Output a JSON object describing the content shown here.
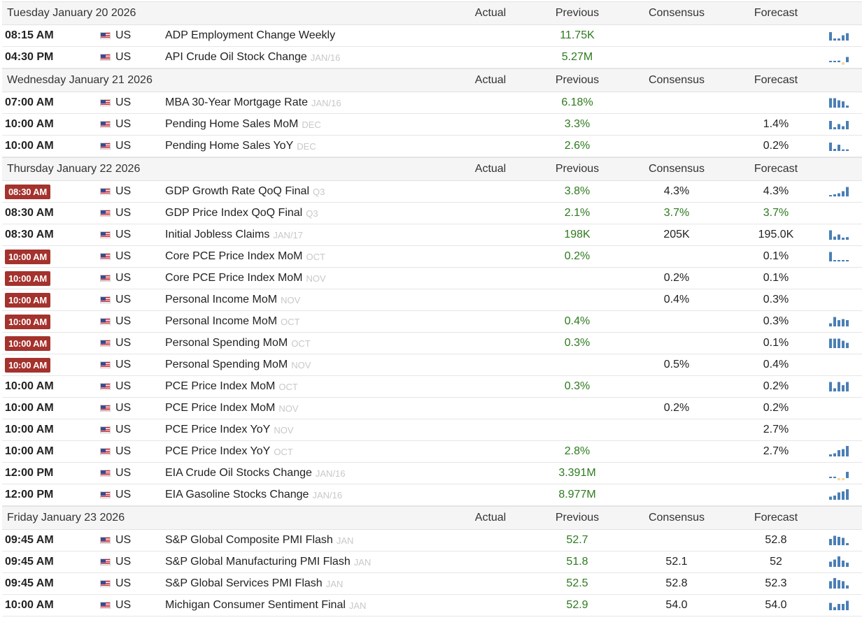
{
  "colors": {
    "green": "#2d7a1e",
    "badge": "#a4322d",
    "bar": "#4a7fb5",
    "bar_pale": "#f3d9a0"
  },
  "columns": {
    "actual": "Actual",
    "previous": "Previous",
    "consensus": "Consensus",
    "forecast": "Forecast"
  },
  "days": [
    {
      "date": "Tuesday January 20 2026",
      "events": [
        {
          "time": "08:15 AM",
          "highlight": false,
          "flag": "us-flag-icon",
          "country": "US",
          "name": "ADP Employment Change Weekly",
          "ref": "",
          "previous": "11.75K",
          "prev_color": "green",
          "consensus": "",
          "cons_color": "black",
          "forecast": "",
          "fc_color": "black",
          "spark": "bars",
          "bars": [
            0.8,
            0.2,
            0.2,
            0.5,
            0.7
          ]
        },
        {
          "time": "04:30 PM",
          "highlight": false,
          "flag": "us-flag-icon",
          "country": "US",
          "name": "API Crude Oil Stock Change",
          "ref": "JAN/16",
          "previous": "5.27M",
          "prev_color": "green",
          "consensus": "",
          "cons_color": "black",
          "forecast": "",
          "fc_color": "black",
          "spark": "dash",
          "bars": [
            0.1,
            0.1,
            0.15,
            -0.4,
            0.5
          ]
        }
      ]
    },
    {
      "date": "Wednesday January 21 2026",
      "events": [
        {
          "time": "07:00 AM",
          "highlight": false,
          "flag": "us-flag-icon",
          "country": "US",
          "name": "MBA 30-Year Mortgage Rate",
          "ref": "JAN/16",
          "previous": "6.18%",
          "prev_color": "green",
          "consensus": "",
          "cons_color": "black",
          "forecast": "",
          "fc_color": "black",
          "spark": "bars",
          "bars": [
            0.9,
            0.9,
            0.7,
            0.6,
            0.2
          ]
        },
        {
          "time": "10:00 AM",
          "highlight": false,
          "flag": "us-flag-icon",
          "country": "US",
          "name": "Pending Home Sales MoM",
          "ref": "DEC",
          "previous": "3.3%",
          "prev_color": "green",
          "consensus": "",
          "cons_color": "black",
          "forecast": "1.4%",
          "fc_color": "black",
          "spark": "bars",
          "bars": [
            0.8,
            0.2,
            0.5,
            0.3,
            0.8
          ]
        },
        {
          "time": "10:00 AM",
          "highlight": false,
          "flag": "us-flag-icon",
          "country": "US",
          "name": "Pending Home Sales YoY",
          "ref": "DEC",
          "previous": "2.6%",
          "prev_color": "green",
          "consensus": "",
          "cons_color": "black",
          "forecast": "0.2%",
          "fc_color": "black",
          "spark": "bars",
          "bars": [
            0.8,
            0.2,
            0.6,
            0.15,
            0.15
          ]
        }
      ]
    },
    {
      "date": "Thursday January 22 2026",
      "events": [
        {
          "time": "08:30 AM",
          "highlight": true,
          "flag": "us-flag-icon",
          "country": "US",
          "name": "GDP Growth Rate QoQ Final",
          "ref": "Q3",
          "previous": "3.8%",
          "prev_color": "green",
          "consensus": "4.3%",
          "cons_color": "black",
          "forecast": "4.3%",
          "fc_color": "black",
          "spark": "bars",
          "bars": [
            0.0,
            0.2,
            0.3,
            0.5,
            0.9
          ]
        },
        {
          "time": "08:30 AM",
          "highlight": false,
          "flag": "us-flag-icon",
          "country": "US",
          "name": "GDP Price Index QoQ Final",
          "ref": "Q3",
          "previous": "2.1%",
          "prev_color": "green",
          "consensus": "3.7%",
          "cons_color": "green",
          "forecast": "3.7%",
          "fc_color": "green",
          "spark": "none",
          "bars": []
        },
        {
          "time": "08:30 AM",
          "highlight": false,
          "flag": "us-flag-icon",
          "country": "US",
          "name": "Initial Jobless Claims",
          "ref": "JAN/17",
          "previous": "198K",
          "prev_color": "green",
          "consensus": "205K",
          "cons_color": "black",
          "forecast": "195.0K",
          "fc_color": "black",
          "spark": "bars",
          "bars": [
            0.9,
            0.3,
            0.5,
            0.2,
            0.25
          ]
        },
        {
          "time": "10:00 AM",
          "highlight": true,
          "flag": "us-flag-icon",
          "country": "US",
          "name": "Core PCE Price Index MoM",
          "ref": "OCT",
          "previous": "0.2%",
          "prev_color": "green",
          "consensus": "",
          "cons_color": "black",
          "forecast": "0.1%",
          "fc_color": "black",
          "spark": "bars",
          "bars": [
            0.9,
            0.1,
            0.1,
            0.1,
            0.1
          ]
        },
        {
          "time": "10:00 AM",
          "highlight": true,
          "flag": "us-flag-icon",
          "country": "US",
          "name": "Core PCE Price Index MoM",
          "ref": "NOV",
          "previous": "",
          "prev_color": "green",
          "consensus": "0.2%",
          "cons_color": "black",
          "forecast": "0.1%",
          "fc_color": "black",
          "spark": "none",
          "bars": []
        },
        {
          "time": "10:00 AM",
          "highlight": true,
          "flag": "us-flag-icon",
          "country": "US",
          "name": "Personal Income MoM",
          "ref": "NOV",
          "previous": "",
          "prev_color": "green",
          "consensus": "0.4%",
          "cons_color": "black",
          "forecast": "0.3%",
          "fc_color": "black",
          "spark": "none",
          "bars": []
        },
        {
          "time": "10:00 AM",
          "highlight": true,
          "flag": "us-flag-icon",
          "country": "US",
          "name": "Personal Income MoM",
          "ref": "OCT",
          "previous": "0.4%",
          "prev_color": "green",
          "consensus": "",
          "cons_color": "black",
          "forecast": "0.3%",
          "fc_color": "black",
          "spark": "bars",
          "bars": [
            0.3,
            0.9,
            0.6,
            0.7,
            0.6
          ]
        },
        {
          "time": "10:00 AM",
          "highlight": true,
          "flag": "us-flag-icon",
          "country": "US",
          "name": "Personal Spending MoM",
          "ref": "OCT",
          "previous": "0.3%",
          "prev_color": "green",
          "consensus": "",
          "cons_color": "black",
          "forecast": "0.1%",
          "fc_color": "black",
          "spark": "bars",
          "bars": [
            0.9,
            0.9,
            0.9,
            0.7,
            0.5
          ]
        },
        {
          "time": "10:00 AM",
          "highlight": true,
          "flag": "us-flag-icon",
          "country": "US",
          "name": "Personal Spending MoM",
          "ref": "NOV",
          "previous": "",
          "prev_color": "green",
          "consensus": "0.5%",
          "cons_color": "black",
          "forecast": "0.4%",
          "fc_color": "black",
          "spark": "none",
          "bars": []
        },
        {
          "time": "10:00 AM",
          "highlight": false,
          "flag": "us-flag-icon",
          "country": "US",
          "name": "PCE Price Index MoM",
          "ref": "OCT",
          "previous": "0.3%",
          "prev_color": "green",
          "consensus": "",
          "cons_color": "black",
          "forecast": "0.2%",
          "fc_color": "black",
          "spark": "bars",
          "bars": [
            0.9,
            0.3,
            0.9,
            0.6,
            0.9
          ]
        },
        {
          "time": "10:00 AM",
          "highlight": false,
          "flag": "us-flag-icon",
          "country": "US",
          "name": "PCE Price Index MoM",
          "ref": "NOV",
          "previous": "",
          "prev_color": "green",
          "consensus": "0.2%",
          "cons_color": "black",
          "forecast": "0.2%",
          "fc_color": "black",
          "spark": "none",
          "bars": []
        },
        {
          "time": "10:00 AM",
          "highlight": false,
          "flag": "us-flag-icon",
          "country": "US",
          "name": "PCE Price Index YoY",
          "ref": "NOV",
          "previous": "",
          "prev_color": "green",
          "consensus": "",
          "cons_color": "black",
          "forecast": "2.7%",
          "fc_color": "black",
          "spark": "none",
          "bars": []
        },
        {
          "time": "10:00 AM",
          "highlight": false,
          "flag": "us-flag-icon",
          "country": "US",
          "name": "PCE Price Index YoY",
          "ref": "OCT",
          "previous": "2.8%",
          "prev_color": "green",
          "consensus": "",
          "cons_color": "black",
          "forecast": "2.7%",
          "fc_color": "black",
          "spark": "bars",
          "bars": [
            0.2,
            0.3,
            0.6,
            0.7,
            1.0
          ]
        },
        {
          "time": "12:00 PM",
          "highlight": false,
          "flag": "us-flag-icon",
          "country": "US",
          "name": "EIA Crude Oil Stocks Change",
          "ref": "JAN/16",
          "previous": "3.391M",
          "prev_color": "green",
          "consensus": "",
          "cons_color": "black",
          "forecast": "",
          "fc_color": "black",
          "spark": "dash",
          "bars": [
            0.1,
            0.1,
            -0.35,
            -0.35,
            0.6
          ]
        },
        {
          "time": "12:00 PM",
          "highlight": false,
          "flag": "us-flag-icon",
          "country": "US",
          "name": "EIA Gasoline Stocks Change",
          "ref": "JAN/16",
          "previous": "8.977M",
          "prev_color": "green",
          "consensus": "",
          "cons_color": "black",
          "forecast": "",
          "fc_color": "black",
          "spark": "bars",
          "bars": [
            0.3,
            0.4,
            0.7,
            0.8,
            1.0
          ]
        }
      ]
    },
    {
      "date": "Friday January 23 2026",
      "events": [
        {
          "time": "09:45 AM",
          "highlight": false,
          "flag": "us-flag-icon",
          "country": "US",
          "name": "S&P Global Composite PMI Flash",
          "ref": "JAN",
          "previous": "52.7",
          "prev_color": "green",
          "consensus": "",
          "cons_color": "black",
          "forecast": "52.8",
          "fc_color": "black",
          "spark": "bars",
          "bars": [
            0.6,
            0.9,
            0.8,
            0.7,
            0.2
          ]
        },
        {
          "time": "09:45 AM",
          "highlight": false,
          "flag": "us-flag-icon",
          "country": "US",
          "name": "S&P Global Manufacturing PMI Flash",
          "ref": "JAN",
          "previous": "51.8",
          "prev_color": "green",
          "consensus": "52.1",
          "cons_color": "black",
          "forecast": "52",
          "fc_color": "black",
          "spark": "bars",
          "bars": [
            0.5,
            0.7,
            1.0,
            0.6,
            0.4
          ]
        },
        {
          "time": "09:45 AM",
          "highlight": false,
          "flag": "us-flag-icon",
          "country": "US",
          "name": "S&P Global Services PMI Flash",
          "ref": "JAN",
          "previous": "52.5",
          "prev_color": "green",
          "consensus": "52.8",
          "cons_color": "black",
          "forecast": "52.3",
          "fc_color": "black",
          "spark": "bars",
          "bars": [
            0.7,
            1.0,
            0.8,
            0.7,
            0.3
          ]
        },
        {
          "time": "10:00 AM",
          "highlight": false,
          "flag": "us-flag-icon",
          "country": "US",
          "name": "Michigan Consumer Sentiment Final",
          "ref": "JAN",
          "previous": "52.9",
          "prev_color": "green",
          "consensus": "54.0",
          "cons_color": "black",
          "forecast": "54.0",
          "fc_color": "black",
          "spark": "bars",
          "bars": [
            0.7,
            0.3,
            0.6,
            0.6,
            0.9
          ]
        }
      ]
    }
  ]
}
